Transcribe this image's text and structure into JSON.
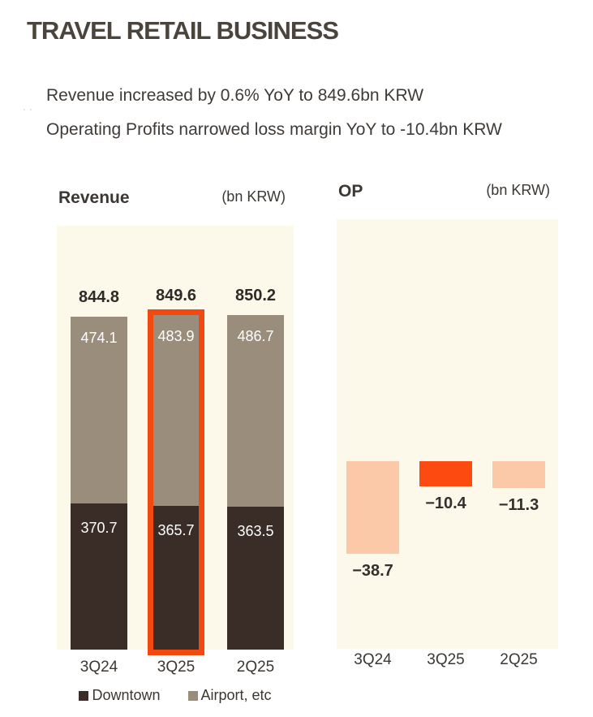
{
  "page": {
    "title": "TRAVEL RETAIL BUSINESS",
    "summary_line1": "Revenue increased by 0.6% YoY to 849.6bn KRW",
    "summary_line2": "Operating Profits narrowed loss margin YoY to -10.4bn KRW"
  },
  "colors": {
    "plot_background": "#fcf8ea",
    "downtown": "#3a2d27",
    "airport": "#9a8d7b",
    "highlight_border": "#f1490f",
    "op_highlight": "#fc4a10",
    "op_default": "#fcc9a8",
    "title_text": "#4a443d",
    "body_text": "#403b37"
  },
  "chart_data": [
    {
      "type": "bar",
      "stacked": true,
      "title": "Revenue",
      "unit_label": "(bn KRW)",
      "categories": [
        "3Q24",
        "3Q25",
        "2Q25"
      ],
      "series": [
        {
          "name": "Downtown",
          "values": [
            370.7,
            365.7,
            363.5
          ],
          "color": "#3a2d27"
        },
        {
          "name": "Airport, etc",
          "values": [
            474.1,
            483.9,
            486.7
          ],
          "color": "#9a8d7b"
        }
      ],
      "totals": [
        "844.8",
        "849.6",
        "850.2"
      ],
      "segment_labels": {
        "Downtown": [
          "370.7",
          "365.7",
          "363.5"
        ],
        "Airport, etc": [
          "474.1",
          "483.9",
          "486.7"
        ]
      },
      "highlighted_category": "3Q25",
      "legend_position": "bottom",
      "grid": false
    },
    {
      "type": "bar",
      "title": "OP",
      "unit_label": "(bn KRW)",
      "categories": [
        "3Q24",
        "3Q25",
        "2Q25"
      ],
      "values": [
        -38.7,
        -10.4,
        -11.3
      ],
      "value_labels": [
        "−38.7",
        "−10.4",
        "−11.3"
      ],
      "highlighted_category": "3Q25",
      "bar_color_default": "#fcc9a8",
      "bar_color_highlight": "#fc4a10",
      "grid": false
    }
  ]
}
